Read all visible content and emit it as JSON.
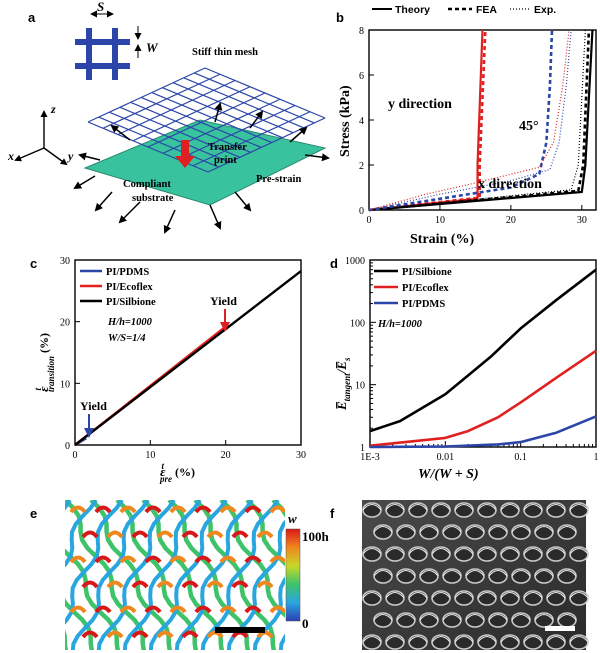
{
  "panel_labels": {
    "a": "a",
    "b": "b",
    "c": "c",
    "d": "d",
    "e": "e",
    "f": "f"
  },
  "panel_a": {
    "mesh_label": "Stiff thin mesh",
    "spacing_symbol": "S",
    "width_symbol": "W",
    "axis_x": "x",
    "axis_y": "y",
    "axis_z": "z",
    "transfer_label": "Transfer print",
    "substrate_label": "Compliant substrate",
    "prestrain_label": "Pre-strain",
    "colors": {
      "mesh": "#2b46a8",
      "substrate": "#39c29e",
      "arrow": "#e02020"
    }
  },
  "panel_e": {
    "colorbar_title": "w",
    "colorbar_max": "100h",
    "colorbar_min": "0"
  },
  "chart_data": [
    {
      "panel": "b",
      "type": "line",
      "xlabel": "Strain (%)",
      "ylabel": "Stress (kPa)",
      "xlim": [
        0,
        32
      ],
      "ylim": [
        0,
        8
      ],
      "xticks": [
        0,
        10,
        20,
        30
      ],
      "yticks": [
        0,
        2,
        4,
        6,
        8
      ],
      "legend": [
        "Theory",
        "FEA",
        "Exp."
      ],
      "legend_position": "top",
      "annotations": [
        {
          "text": "y direction",
          "color": "#e02020"
        },
        {
          "text": "45°",
          "color": "#2b46a8"
        },
        {
          "text": "x direction",
          "color": "#000000"
        }
      ],
      "series": [
        {
          "name": "Theory",
          "color": "#e02020",
          "x": [
            0,
            15.3,
            15.3,
            16.0
          ],
          "y": [
            0,
            0.5,
            2,
            8
          ]
        },
        {
          "name": "FEA",
          "color": "#e02020",
          "x": [
            0,
            15.6,
            15.6,
            16.4
          ],
          "y": [
            0,
            0.55,
            2,
            8
          ]
        },
        {
          "name": "Theory",
          "color": "#000000",
          "x": [
            0,
            30,
            30.5,
            31.5
          ],
          "y": [
            0,
            0.8,
            2,
            8
          ]
        },
        {
          "name": "FEA",
          "color": "#000000",
          "x": [
            0,
            29.5,
            30.2,
            31
          ],
          "y": [
            0,
            0.85,
            2,
            8
          ]
        },
        {
          "name": "Exp.",
          "color": "#000000",
          "x": [
            0,
            28.5,
            29.5,
            30.5
          ],
          "y": [
            0,
            0.9,
            2,
            8
          ]
        },
        {
          "name": "FEA",
          "color": "#2b46a8",
          "x": [
            0,
            10,
            20,
            24,
            25,
            25.5,
            25.8
          ],
          "y": [
            0,
            0.5,
            1,
            1.6,
            3,
            5.5,
            8
          ]
        },
        {
          "name": "Exp.",
          "color": "#2b46a8",
          "x": [
            0,
            10,
            20,
            25.5,
            26.8,
            27.8,
            28.5
          ],
          "y": [
            0,
            0.7,
            1.3,
            1.8,
            3,
            5.5,
            8
          ]
        },
        {
          "name": "Exp.",
          "color": "#e02020",
          "x": [
            0,
            8,
            15,
            24,
            26,
            27.3,
            28.2
          ],
          "y": [
            0,
            0.7,
            1.2,
            1.9,
            3,
            5.5,
            8
          ]
        }
      ]
    },
    {
      "panel": "c",
      "type": "line",
      "xlabel": "ε_pre^t (%)",
      "xlabel_main": "ε",
      "xlabel_sup": "t",
      "xlabel_sub": "pre",
      "xlabel_unit": "(%)",
      "ylabel": "ε_transition^t (%)",
      "ylabel_main": "ε",
      "ylabel_sup": "t",
      "ylabel_sub": "transition",
      "ylabel_unit": "(%)",
      "xlim": [
        0,
        30
      ],
      "ylim": [
        0,
        30
      ],
      "xticks": [
        0,
        10,
        20,
        30
      ],
      "yticks": [
        0,
        10,
        20,
        30
      ],
      "legend": [
        "PI/PDMS",
        "PI/Ecoflex",
        "PI/Silbione"
      ],
      "legend_position": "top-left",
      "params": [
        "H/h=1000",
        "W/S=1/4"
      ],
      "annotations": [
        {
          "text": "Yield",
          "x": 2,
          "y": 0,
          "color": "#2b46a8"
        },
        {
          "text": "Yield",
          "x": 20,
          "y": 19.2,
          "color": "#e02020"
        }
      ],
      "series": [
        {
          "name": "PI/PDMS",
          "color": "#2b46a8",
          "x": [
            0,
            1.5
          ],
          "y": [
            0,
            1.1
          ]
        },
        {
          "name": "PI/Ecoflex",
          "color": "#e02020",
          "x": [
            0,
            20
          ],
          "y": [
            0,
            19.2
          ]
        },
        {
          "name": "PI/Silbione",
          "color": "#000000",
          "x": [
            0,
            30
          ],
          "y": [
            0,
            28.2
          ]
        }
      ]
    },
    {
      "panel": "d",
      "type": "line",
      "xlabel": "W/(W + S)",
      "ylabel": "E̅_tangent/E̅_s",
      "ylabel_main": "E̅",
      "ylabel_sub": "tangent",
      "ylabel_tail": "/E̅",
      "ylabel_sub2": "s",
      "xscale": "log",
      "yscale": "log",
      "xlim": [
        0.001,
        1
      ],
      "ylim": [
        1,
        1000
      ],
      "xticks": [
        "1E-3",
        "0.01",
        "0.1",
        "1"
      ],
      "yticks": [
        "1",
        "10",
        "100",
        "1000"
      ],
      "legend": [
        "PI/Silbione",
        "PI/Ecoflex",
        "PI/PDMS"
      ],
      "legend_position": "top-left",
      "params": [
        "H/h=1000"
      ],
      "series": [
        {
          "name": "PI/Silbione",
          "color": "#000000",
          "x": [
            0.001,
            0.0025,
            0.01,
            0.04,
            0.1,
            0.3,
            1
          ],
          "y": [
            1.8,
            2.6,
            7,
            28,
            80,
            230,
            700
          ]
        },
        {
          "name": "PI/Ecoflex",
          "color": "#e02020",
          "x": [
            0.001,
            0.01,
            0.02,
            0.05,
            0.1,
            0.3,
            1
          ],
          "y": [
            1.05,
            1.4,
            1.8,
            3,
            5.2,
            13,
            35
          ]
        },
        {
          "name": "PI/PDMS",
          "color": "#2b46a8",
          "x": [
            0.001,
            0.01,
            0.05,
            0.1,
            0.3,
            1
          ],
          "y": [
            1.0,
            1.02,
            1.1,
            1.2,
            1.7,
            3.1
          ]
        }
      ]
    }
  ]
}
